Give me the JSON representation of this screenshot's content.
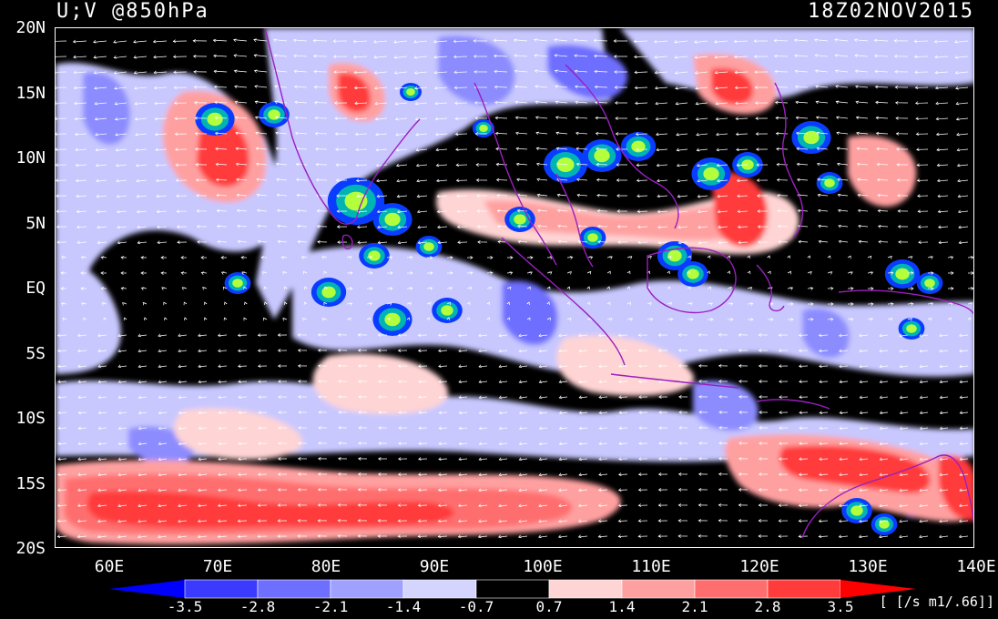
{
  "title": {
    "left": "U;V @850hPa",
    "right": "18Z02NOV2015"
  },
  "lat_labels": [
    "20N",
    "15N",
    "10N",
    "5N",
    "EQ",
    "5S",
    "10S",
    "15S",
    "20S"
  ],
  "lon_labels": [
    "60E",
    "70E",
    "80E",
    "90E",
    "100E",
    "110E",
    "120E",
    "130E",
    "140E"
  ],
  "colorbar": {
    "labels": [
      "-3.5",
      "-2.8",
      "-2.1",
      "-1.4",
      "-0.7",
      "0.7",
      "1.4",
      "2.1",
      "2.8",
      "3.5"
    ],
    "colors": [
      "#0000ff",
      "#3b3bff",
      "#6e6eff",
      "#a0a0ff",
      "#d4d4ff",
      "#000000",
      "#ffd4d4",
      "#ffa0a0",
      "#ff6e6e",
      "#ff3b3b",
      "#ff0000"
    ],
    "units": "[ [/s m1/.66]]"
  },
  "legend_colors": {
    "deep_convection_outer": "#0a3cff",
    "deep_convection_mid": "#00b4b4",
    "deep_convection_core": "#b4ff3c",
    "wind_vector": "#ffffff",
    "coastline": "#9b1fbf"
  }
}
